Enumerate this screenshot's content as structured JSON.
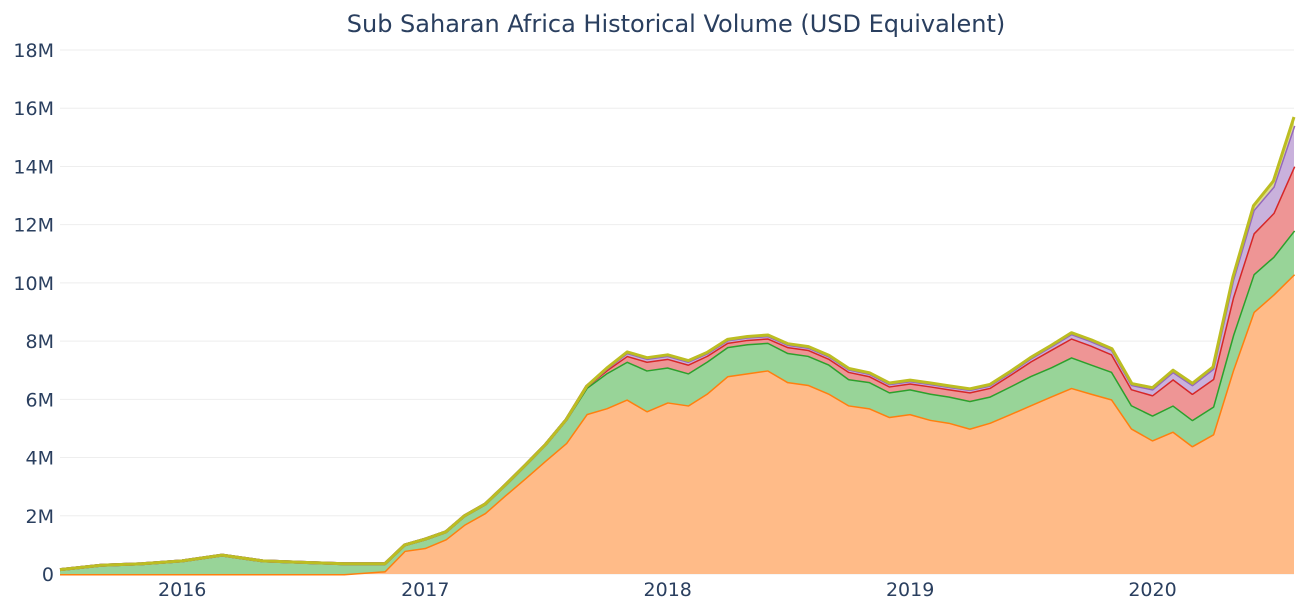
{
  "chart_data": {
    "type": "area",
    "title": "Sub Saharan Africa Historical Volume (USD Equivalent)",
    "xlabel": "",
    "ylabel": "",
    "ylim": [
      0,
      18000000
    ],
    "xlim": [
      "2015-07-01",
      "2020-08-01"
    ],
    "y_ticks": [
      {
        "value": 0,
        "label": "0"
      },
      {
        "value": 2000000,
        "label": "2M"
      },
      {
        "value": 4000000,
        "label": "4M"
      },
      {
        "value": 6000000,
        "label": "6M"
      },
      {
        "value": 8000000,
        "label": "8M"
      },
      {
        "value": 10000000,
        "label": "10M"
      },
      {
        "value": 12000000,
        "label": "12M"
      },
      {
        "value": 14000000,
        "label": "14M"
      },
      {
        "value": 16000000,
        "label": "16M"
      },
      {
        "value": 18000000,
        "label": "18M"
      }
    ],
    "x_ticks": [
      {
        "value": "2016-01-01",
        "label": "2016"
      },
      {
        "value": "2017-01-01",
        "label": "2017"
      },
      {
        "value": "2018-01-01",
        "label": "2018"
      },
      {
        "value": "2019-01-01",
        "label": "2019"
      },
      {
        "value": "2020-01-01",
        "label": "2020"
      }
    ],
    "grid": true,
    "legend": false,
    "stacked": true,
    "x": [
      "2015-07-01",
      "2015-09-01",
      "2015-11-01",
      "2016-01-01",
      "2016-03-01",
      "2016-05-01",
      "2016-07-01",
      "2016-09-01",
      "2016-11-01",
      "2016-12-01",
      "2017-01-01",
      "2017-02-01",
      "2017-03-01",
      "2017-04-01",
      "2017-05-01",
      "2017-06-01",
      "2017-07-01",
      "2017-08-01",
      "2017-09-01",
      "2017-10-01",
      "2017-11-01",
      "2017-12-01",
      "2018-01-01",
      "2018-02-01",
      "2018-03-01",
      "2018-04-01",
      "2018-05-01",
      "2018-06-01",
      "2018-07-01",
      "2018-08-01",
      "2018-09-01",
      "2018-10-01",
      "2018-11-01",
      "2018-12-01",
      "2019-01-01",
      "2019-02-01",
      "2019-03-01",
      "2019-04-01",
      "2019-05-01",
      "2019-06-01",
      "2019-07-01",
      "2019-08-01",
      "2019-09-01",
      "2019-10-01",
      "2019-11-01",
      "2019-12-01",
      "2020-01-01",
      "2020-02-01",
      "2020-03-01",
      "2020-04-01",
      "2020-05-01",
      "2020-06-01",
      "2020-07-01",
      "2020-08-01"
    ],
    "series": [
      {
        "color": "#ff7f0e",
        "fill": "#ffbb88",
        "values": [
          0,
          0,
          0,
          0,
          0,
          0,
          0,
          0,
          100000,
          800000,
          900000,
          1200000,
          1700000,
          2100000,
          2700000,
          3300000,
          3900000,
          4500000,
          5500000,
          5700000,
          6000000,
          5600000,
          5900000,
          5800000,
          6200000,
          6800000,
          6900000,
          7000000,
          6600000,
          6500000,
          6200000,
          5800000,
          5700000,
          5400000,
          5500000,
          5300000,
          5200000,
          5000000,
          5200000,
          5500000,
          5800000,
          6100000,
          6400000,
          6200000,
          6000000,
          5000000,
          4600000,
          4900000,
          4400000,
          4800000,
          7000000,
          9000000,
          9600000,
          10300000
        ]
      },
      {
        "color": "#2ca02c",
        "fill": "#98d498",
        "values": [
          150000,
          300000,
          350000,
          450000,
          650000,
          450000,
          400000,
          350000,
          250000,
          200000,
          300000,
          250000,
          300000,
          300000,
          350000,
          450000,
          550000,
          800000,
          900000,
          1200000,
          1300000,
          1400000,
          1200000,
          1100000,
          1100000,
          1000000,
          1000000,
          950000,
          1000000,
          1000000,
          1000000,
          900000,
          900000,
          850000,
          850000,
          900000,
          900000,
          950000,
          900000,
          950000,
          1000000,
          1000000,
          1050000,
          1000000,
          950000,
          800000,
          850000,
          900000,
          900000,
          950000,
          1200000,
          1300000,
          1300000,
          1500000
        ]
      },
      {
        "color": "#d62728",
        "fill": "#ee9595",
        "values": [
          0,
          0,
          0,
          0,
          0,
          0,
          0,
          0,
          0,
          0,
          0,
          0,
          0,
          0,
          0,
          0,
          0,
          0,
          50000,
          100000,
          200000,
          300000,
          300000,
          300000,
          200000,
          150000,
          150000,
          150000,
          200000,
          200000,
          200000,
          250000,
          200000,
          200000,
          200000,
          250000,
          250000,
          300000,
          300000,
          400000,
          500000,
          600000,
          650000,
          650000,
          600000,
          550000,
          700000,
          900000,
          900000,
          950000,
          1300000,
          1400000,
          1500000,
          2200000
        ]
      },
      {
        "color": "#9467bd",
        "fill": "#c9b1dc",
        "values": [
          0,
          0,
          0,
          0,
          0,
          0,
          0,
          0,
          0,
          0,
          0,
          0,
          0,
          0,
          0,
          0,
          0,
          0,
          0,
          50000,
          100000,
          100000,
          100000,
          100000,
          80000,
          80000,
          80000,
          80000,
          80000,
          80000,
          80000,
          80000,
          80000,
          80000,
          80000,
          80000,
          80000,
          80000,
          80000,
          80000,
          100000,
          120000,
          150000,
          150000,
          150000,
          150000,
          200000,
          250000,
          300000,
          350000,
          600000,
          800000,
          900000,
          1400000
        ]
      },
      {
        "color": "#bcbd22",
        "fill": "#dddd8f",
        "values": [
          0,
          0,
          0,
          0,
          0,
          0,
          0,
          0,
          0,
          0,
          0,
          0,
          0,
          0,
          0,
          0,
          0,
          0,
          0,
          20000,
          30000,
          30000,
          30000,
          30000,
          30000,
          30000,
          30000,
          30000,
          30000,
          30000,
          30000,
          30000,
          30000,
          30000,
          30000,
          30000,
          30000,
          30000,
          30000,
          30000,
          30000,
          30000,
          40000,
          40000,
          40000,
          40000,
          50000,
          50000,
          50000,
          60000,
          100000,
          150000,
          200000,
          300000
        ]
      }
    ]
  }
}
